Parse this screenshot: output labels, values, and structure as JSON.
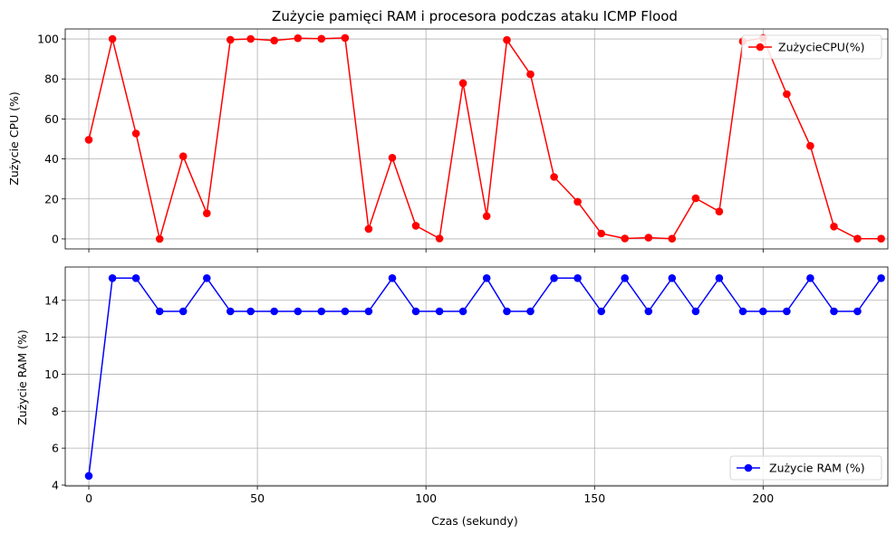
{
  "chart_data": [
    {
      "type": "line",
      "title": "Zużycie pamięci RAM i procesora podczas ataku ICMP Flood",
      "xlabel": "",
      "ylabel": "Zużycie CPU (%)",
      "xlim": [
        -7,
        237
      ],
      "ylim": [
        -5,
        105
      ],
      "xticks": [
        0,
        50,
        100,
        150,
        200
      ],
      "yticks": [
        0,
        20,
        40,
        60,
        80,
        100
      ],
      "xtick_labels_visible": false,
      "grid": true,
      "legend_position": "upper right",
      "series": [
        {
          "name": "ZużycieCPU(%)",
          "color": "#ff0000",
          "marker": "circle",
          "x": [
            0,
            7,
            14,
            21,
            28,
            35,
            42,
            48,
            55,
            62,
            69,
            76,
            83,
            90,
            97,
            104,
            111,
            118,
            124,
            131,
            138,
            145,
            152,
            159,
            166,
            173,
            180,
            187,
            194,
            200,
            207,
            214,
            221,
            228,
            235
          ],
          "y": [
            49.6,
            100,
            52.7,
            0,
            41.3,
            12.8,
            99.6,
            100,
            99.2,
            100.4,
            100.1,
            100.5,
            5,
            40.6,
            6.6,
            0.2,
            77.9,
            11.4,
            99.5,
            82.3,
            31,
            18.6,
            2.7,
            0.2,
            0.6,
            0.1,
            20.3,
            13.7,
            98.8,
            100.5,
            72.4,
            46.5,
            6.2,
            0.1,
            0.1
          ]
        }
      ]
    },
    {
      "type": "line",
      "title": "",
      "xlabel": "Czas (sekundy)",
      "ylabel": "Zużycie RAM (%)",
      "xlim": [
        -7,
        237
      ],
      "ylim": [
        3.95,
        15.8
      ],
      "xticks": [
        0,
        50,
        100,
        150,
        200
      ],
      "yticks": [
        4,
        6,
        8,
        10,
        12,
        14
      ],
      "grid": true,
      "legend_position": "lower right",
      "series": [
        {
          "name": "Zużycie RAM (%)",
          "color": "#0000ff",
          "marker": "circle",
          "x": [
            0,
            7,
            14,
            21,
            28,
            35,
            42,
            48,
            55,
            62,
            69,
            76,
            83,
            90,
            97,
            104,
            111,
            118,
            124,
            131,
            138,
            145,
            152,
            159,
            166,
            173,
            180,
            187,
            194,
            200,
            207,
            214,
            221,
            228,
            235
          ],
          "y": [
            4.5,
            15.2,
            15.2,
            13.4,
            13.4,
            15.2,
            13.4,
            13.4,
            13.4,
            13.4,
            13.4,
            13.4,
            13.4,
            15.2,
            13.4,
            13.4,
            13.4,
            15.2,
            13.4,
            13.4,
            15.2,
            15.2,
            13.4,
            15.2,
            13.4,
            15.2,
            13.4,
            15.2,
            13.4,
            13.4,
            13.4,
            15.2,
            13.4,
            13.4,
            15.2
          ]
        }
      ]
    }
  ]
}
